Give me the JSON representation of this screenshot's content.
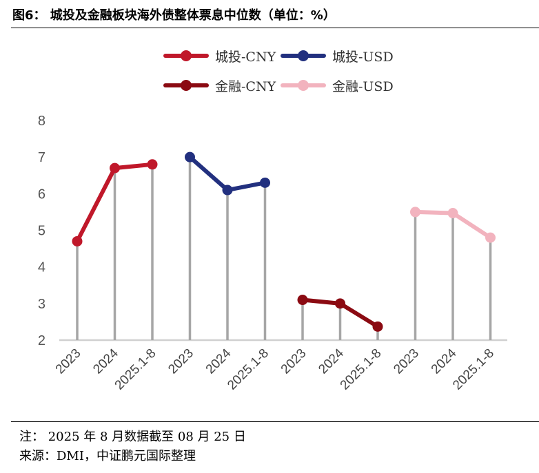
{
  "header": {
    "title": "图6： 城投及金融板块海外债整体票息中位数（单位：%）"
  },
  "chart_data": {
    "type": "line",
    "title": "城投及金融板块海外债整体票息中位数（单位：%）",
    "ylim": [
      2,
      8
    ],
    "yticks": [
      "2",
      "3",
      "4",
      "5",
      "6",
      "7",
      "8"
    ],
    "legend_placement": "top",
    "grid": false,
    "groups": [
      {
        "name": "城投-CNY",
        "color": "#c0182a",
        "categories": [
          "2023",
          "2024",
          "2025.1-8"
        ],
        "values": [
          4.7,
          6.7,
          6.8
        ]
      },
      {
        "name": "城投-USD",
        "color": "#22307f",
        "categories": [
          "2023",
          "2024",
          "2025.1-8"
        ],
        "values": [
          7.0,
          6.1,
          6.3
        ]
      },
      {
        "name": "金融-CNY",
        "color": "#8b0a12",
        "categories": [
          "2023",
          "2024",
          "2025.1-8"
        ],
        "values": [
          3.1,
          3.0,
          2.37
        ]
      },
      {
        "name": "金融-USD",
        "color": "#f2b3be",
        "categories": [
          "2023",
          "2024",
          "2025.1-8"
        ],
        "values": [
          5.5,
          5.47,
          4.8
        ]
      }
    ]
  },
  "footer": {
    "note": "注：  2025 年 8 月数据截至 08 月 25 日",
    "source": "来源：DMI，中证鹏元国际整理"
  }
}
